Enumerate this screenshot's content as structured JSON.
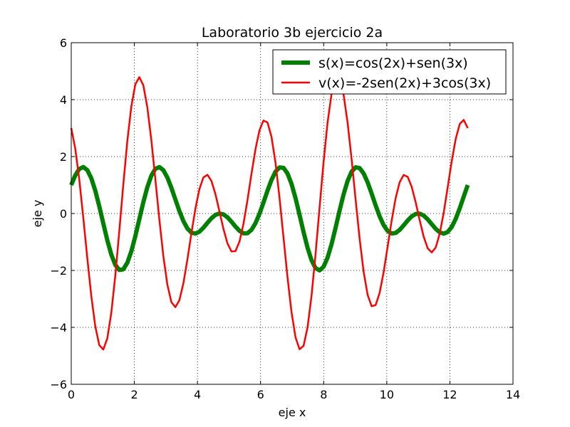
{
  "chart_data": {
    "type": "line",
    "title": "Laboratorio 3b ejercicio 2a",
    "xlabel": "eje x",
    "ylabel": "eje y",
    "xlim": [
      0,
      14
    ],
    "ylim": [
      -6,
      6
    ],
    "xticks": [
      0,
      2,
      4,
      6,
      8,
      10,
      12,
      14
    ],
    "yticks": [
      -6,
      -4,
      -2,
      0,
      2,
      4,
      6
    ],
    "grid": true,
    "legend_position": "top-right",
    "x_range": [
      0,
      12.566
    ],
    "num_points": 100,
    "series": [
      {
        "name": "s(x)=cos(2x)+sen(3x)",
        "formula": "cos(2x)+sin(3x)",
        "color": "#008000"
      },
      {
        "name": "v(x)=-2sen(2x)+3cos(3x)",
        "formula": "-2sin(2x)+3cos(3x)",
        "color": "#ff0000"
      }
    ]
  }
}
